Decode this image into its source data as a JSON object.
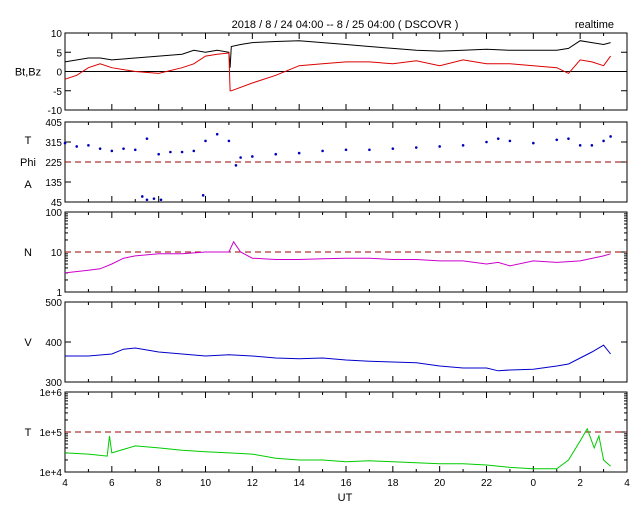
{
  "title": "2018 / 8 / 24   04:00 -- 8 / 25  04:00 ( DSCOVR )",
  "badge": "realtime",
  "xlabel": "UT",
  "x_ticks": [
    "4",
    "6",
    "8",
    "10",
    "12",
    "14",
    "16",
    "18",
    "20",
    "22",
    "0",
    "2",
    "4"
  ],
  "chart_data": [
    {
      "type": "line",
      "panel": "magnetic-field",
      "ylabel_lines": [
        "Bt,Bz"
      ],
      "ylim": [
        -10,
        10
      ],
      "y_ticks": [
        "10",
        "5",
        "0",
        "-5",
        "-10"
      ],
      "y_tick_values": [
        10,
        5,
        0,
        -5,
        -10
      ],
      "zero_line": 0,
      "series": [
        {
          "name": "Bt",
          "color": "#000000",
          "x": [
            4,
            5,
            5.5,
            6,
            7,
            8,
            9,
            9.5,
            10,
            10.5,
            11,
            11.05,
            11.1,
            11.5,
            12,
            13,
            14,
            15,
            16,
            17,
            18,
            19,
            20,
            21,
            22,
            23,
            24,
            25,
            25.5,
            26,
            26.5,
            27,
            27.3
          ],
          "y": [
            2.5,
            3.5,
            3.5,
            3,
            3.5,
            4,
            4.5,
            5.5,
            5,
            5.5,
            5,
            1,
            6.5,
            7,
            7.5,
            7.8,
            8,
            7.5,
            7,
            6.5,
            6,
            5.5,
            5.3,
            5.5,
            5.8,
            5.5,
            5.5,
            5.5,
            6,
            8,
            7.5,
            7,
            7.5
          ]
        },
        {
          "name": "Bz",
          "color": "#dd0000",
          "x": [
            4,
            4.5,
            5,
            5.5,
            6,
            7,
            8,
            9,
            9.5,
            10,
            10.5,
            11,
            11.05,
            11.1,
            12,
            13,
            14,
            15,
            16,
            17,
            18,
            19,
            20,
            21,
            22,
            23,
            24,
            25,
            25.5,
            26,
            26.5,
            27,
            27.3
          ],
          "y": [
            -2,
            -1,
            1,
            2,
            1,
            0,
            -0.5,
            1,
            2,
            4,
            4.5,
            4.8,
            -5,
            -5,
            -3,
            -1,
            1.5,
            2,
            2.5,
            2.5,
            2,
            2.8,
            1.5,
            3,
            2,
            2,
            1.5,
            1,
            -0.5,
            3,
            2.5,
            1.5,
            4
          ]
        }
      ]
    },
    {
      "type": "scatter",
      "panel": "angles",
      "ylabel_lines": [
        "T",
        "Phi",
        "A"
      ],
      "ylim": [
        45,
        405
      ],
      "y_ticks": [
        "405",
        "315",
        "225",
        "135",
        "45"
      ],
      "y_tick_values": [
        405,
        315,
        225,
        135,
        45
      ],
      "ref_line": 225,
      "series": [
        {
          "name": "Phi",
          "color": "#0000bb",
          "x": [
            4,
            4.5,
            5,
            5.5,
            6,
            6.5,
            7,
            7.5,
            8,
            8.5,
            9,
            9.5,
            10,
            10.5,
            11,
            11.3,
            11.5,
            12,
            13,
            14,
            15,
            16,
            17,
            18,
            19,
            20,
            21,
            22,
            22.5,
            23,
            24,
            25,
            25.5,
            26,
            26.5,
            27,
            27.3
          ],
          "y": [
            310,
            295,
            300,
            285,
            275,
            285,
            280,
            330,
            260,
            270,
            270,
            275,
            320,
            350,
            320,
            210,
            245,
            250,
            260,
            265,
            275,
            280,
            280,
            285,
            290,
            295,
            300,
            315,
            330,
            320,
            310,
            325,
            330,
            300,
            300,
            320,
            340
          ]
        },
        {
          "name": "Phi-low",
          "color": "#0000bb",
          "x": [
            7.3,
            7.5,
            7.8,
            8.1,
            9.9
          ],
          "y": [
            70,
            55,
            60,
            55,
            75
          ]
        }
      ]
    },
    {
      "type": "line",
      "panel": "density",
      "ylabel_lines": [
        "N"
      ],
      "yscale": "log",
      "ylim": [
        1,
        100
      ],
      "y_ticks": [
        "100",
        "10",
        "1"
      ],
      "y_tick_values": [
        100,
        10,
        1
      ],
      "ref_line": 10,
      "series": [
        {
          "name": "N",
          "color": "#cc00cc",
          "x": [
            4,
            5,
            5.5,
            6,
            6.5,
            7,
            8,
            9,
            10,
            11,
            11.2,
            11.5,
            12,
            13,
            14,
            15,
            16,
            17,
            18,
            19,
            20,
            21,
            22,
            22.5,
            23,
            24,
            25,
            26,
            27,
            27.3
          ],
          "y": [
            3,
            3.5,
            3.8,
            5,
            7,
            8,
            9,
            9,
            10,
            10,
            18,
            10,
            7,
            6.5,
            6.5,
            6.8,
            7,
            7,
            6.5,
            6.5,
            6,
            6,
            5,
            5.5,
            4.5,
            6,
            5.5,
            6,
            8,
            9
          ]
        }
      ]
    },
    {
      "type": "line",
      "panel": "velocity",
      "ylabel_lines": [
        "V"
      ],
      "ylim": [
        300,
        500
      ],
      "y_ticks": [
        "500",
        "400",
        "300"
      ],
      "y_tick_values": [
        500,
        400,
        300
      ],
      "series": [
        {
          "name": "V",
          "color": "#0000cc",
          "x": [
            4,
            5,
            6,
            6.5,
            7,
            8,
            9,
            10,
            11,
            12,
            13,
            14,
            15,
            16,
            17,
            18,
            19,
            20,
            21,
            22,
            22.5,
            23,
            24,
            25,
            25.5,
            26,
            26.5,
            27,
            27.3
          ],
          "y": [
            365,
            365,
            370,
            382,
            385,
            375,
            370,
            365,
            368,
            365,
            360,
            358,
            360,
            355,
            352,
            350,
            348,
            340,
            335,
            335,
            328,
            330,
            332,
            340,
            345,
            360,
            375,
            392,
            370
          ]
        }
      ]
    },
    {
      "type": "line",
      "panel": "temperature",
      "ylabel_lines": [
        "T"
      ],
      "yscale": "log",
      "ylim": [
        10000,
        1000000
      ],
      "y_ticks": [
        "1e+6",
        "1e+5",
        "1e+4"
      ],
      "y_tick_values": [
        1000000,
        100000,
        10000
      ],
      "ref_line": 100000,
      "series": [
        {
          "name": "T",
          "color": "#00cc00",
          "x": [
            4,
            5,
            5.8,
            5.9,
            6,
            7,
            8,
            9,
            10,
            11,
            12,
            13,
            14,
            15,
            16,
            17,
            18,
            19,
            20,
            21,
            22,
            23,
            24,
            25,
            25.5,
            26,
            26.3,
            26.6,
            26.8,
            27,
            27.3
          ],
          "y": [
            30000,
            28000,
            25000,
            80000,
            30000,
            45000,
            40000,
            35000,
            32000,
            30000,
            28000,
            22000,
            20000,
            20000,
            18000,
            19000,
            18000,
            17000,
            16000,
            16000,
            15000,
            13000,
            12000,
            12000,
            20000,
            60000,
            120000,
            40000,
            80000,
            20000,
            14000
          ]
        }
      ]
    }
  ]
}
